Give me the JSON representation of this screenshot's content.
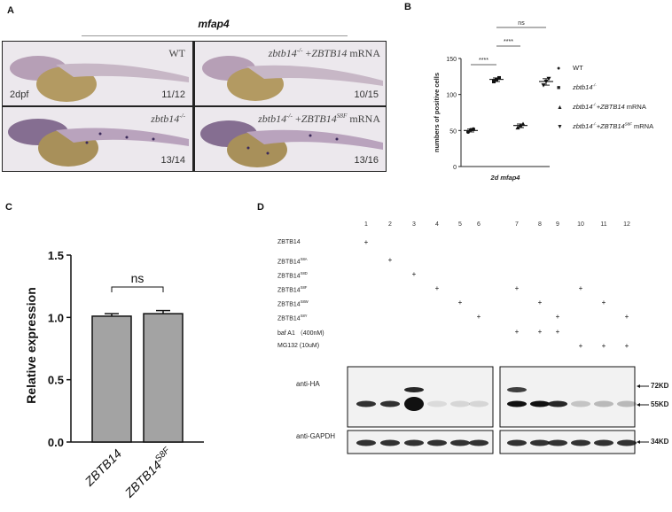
{
  "panel_a": {
    "label": "A",
    "title": "mfap4",
    "tiles": [
      {
        "genotype_html": "WT",
        "age": "2dpf",
        "count": "11/12"
      },
      {
        "genotype_html": "<i>zbtb14<sup>-/-</sup></i> +<i>ZBTB14</i> mRNA",
        "age": "",
        "count": "10/15"
      },
      {
        "genotype_html": "<i>zbtb14<sup>-/-</sup></i>",
        "age": "",
        "count": "13/14"
      },
      {
        "genotype_html": "<i>zbtb14<sup>-/-</sup></i> +<i>ZBTB14<sup>S8F</sup></i> mRNA",
        "age": "",
        "count": "13/16"
      }
    ]
  },
  "panel_b": {
    "label": "B",
    "chart_data": {
      "type": "scatter",
      "ylabel": "numbers of positive cells",
      "xlabel": "2d mfap4",
      "ylim": [
        0,
        150
      ],
      "yticks": [
        "0",
        "50",
        "100",
        "150"
      ],
      "groups": [
        {
          "name": "WT",
          "marker": "circle",
          "mean": 50,
          "points": [
            48,
            51,
            52
          ]
        },
        {
          "name": "zbtb14-/-",
          "marker": "square",
          "mean": 121,
          "points": [
            118,
            121,
            123
          ]
        },
        {
          "name": "zbtb14-/-+ZBTB14 mRNA",
          "marker": "triangle-up",
          "mean": 57,
          "points": [
            54,
            57,
            59
          ]
        },
        {
          "name": "zbtb14-/-+ZBTB14S8F mRNA",
          "marker": "triangle-down",
          "mean": 118,
          "points": [
            113,
            118,
            122
          ]
        }
      ],
      "significance": [
        {
          "pair": [
            0,
            1
          ],
          "label": "****"
        },
        {
          "pair": [
            1,
            2
          ],
          "label": "****"
        },
        {
          "pair": [
            1,
            3
          ],
          "label": "ns"
        }
      ]
    },
    "legend_html": [
      "WT",
      "<i>zbtb14<sup>-/-</sup></i>",
      "<i>zbtb14<sup>-/-</sup>+ZBTB14</i> mRNA",
      "<i>zbtb14<sup>-/-</sup>+ZBTB14<sup>S8F</sup></i> mRNA"
    ]
  },
  "panel_c": {
    "label": "C",
    "chart_data": {
      "type": "bar",
      "categories": [
        "ZBTB14",
        "ZBTB14S8F"
      ],
      "values": [
        1.01,
        1.03
      ],
      "errors": [
        0.02,
        0.025
      ],
      "ylabel": "Relative expression",
      "ylim": [
        0,
        1.5
      ],
      "yticks": [
        "0.0",
        "0.5",
        "1.0",
        "1.5"
      ],
      "significance": "ns",
      "bar_color": "#a3a3a3"
    }
  },
  "panel_d": {
    "label": "D",
    "lanes": [
      "1",
      "2",
      "3",
      "4",
      "5",
      "6",
      "7",
      "8",
      "9",
      "10",
      "11",
      "12"
    ],
    "rows": [
      {
        "label_html": "ZBTB14",
        "plus": [
          1
        ]
      },
      {
        "label_html": "ZBTB14<sup>S8A</sup>",
        "plus": [
          2
        ]
      },
      {
        "label_html": "ZBTB14<sup>S8D</sup>",
        "plus": [
          3
        ]
      },
      {
        "label_html": "ZBTB14<sup>S8F</sup>",
        "plus": [
          4,
          7,
          10
        ]
      },
      {
        "label_html": "ZBTB14<sup>S8W</sup>",
        "plus": [
          5,
          8,
          11
        ]
      },
      {
        "label_html": "ZBTB14<sup>S8Y</sup>",
        "plus": [
          6,
          9,
          12
        ]
      },
      {
        "label_html": "baf A1 （400nM)",
        "plus": [
          7,
          8,
          9
        ]
      },
      {
        "label_html": "MG132 (10uM)",
        "plus": [
          10,
          11,
          12
        ]
      }
    ],
    "plus_sign": "+",
    "antibody_ha": "anti-HA",
    "antibody_gapdh": "anti-GAPDH",
    "marker_72": "72KD",
    "marker_55": "55KD",
    "marker_34": "34KD"
  }
}
